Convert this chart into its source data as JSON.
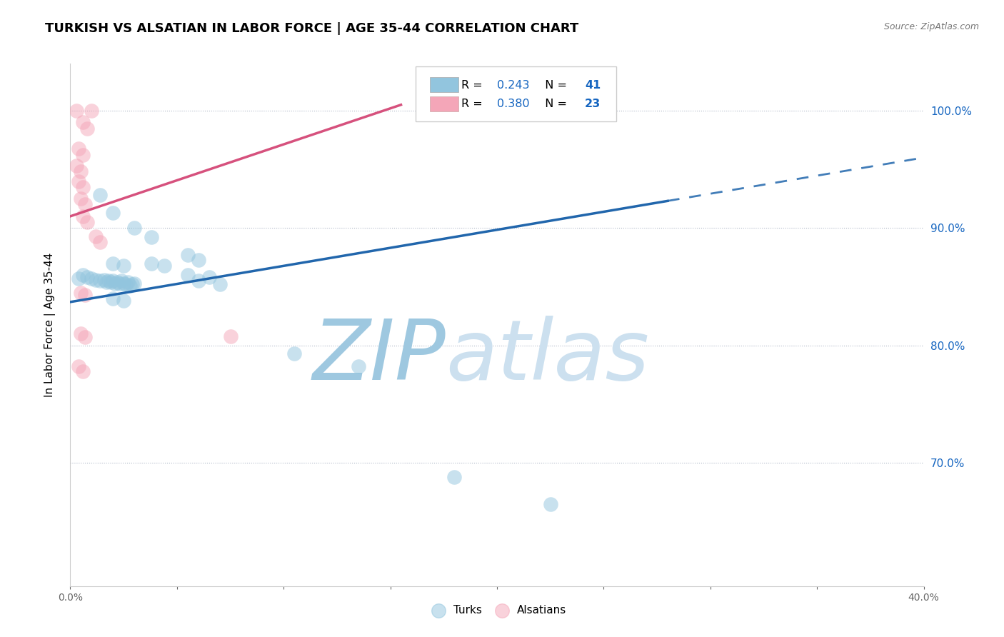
{
  "title": "TURKISH VS ALSATIAN IN LABOR FORCE | AGE 35-44 CORRELATION CHART",
  "source": "Source: ZipAtlas.com",
  "ylabel": "In Labor Force | Age 35-44",
  "xlim": [
    0.0,
    0.4
  ],
  "ylim": [
    0.595,
    1.04
  ],
  "xtick_labels": [
    "0.0%",
    "",
    "",
    "",
    "",
    "",
    "",
    "",
    "40.0%"
  ],
  "xtick_vals": [
    0.0,
    0.05,
    0.1,
    0.15,
    0.2,
    0.25,
    0.3,
    0.35,
    0.4
  ],
  "ytick_labels": [
    "70.0%",
    "80.0%",
    "90.0%",
    "100.0%"
  ],
  "ytick_vals": [
    0.7,
    0.8,
    0.9,
    1.0
  ],
  "hgrid_vals": [
    0.7,
    0.8,
    0.9,
    1.0
  ],
  "blue_R": "0.243",
  "blue_N": "41",
  "pink_R": "0.380",
  "pink_N": "23",
  "blue_color": "#92c5de",
  "pink_color": "#f4a6b8",
  "blue_line_color": "#2166ac",
  "pink_line_color": "#d6517d",
  "blue_scatter": [
    [
      0.004,
      0.857
    ],
    [
      0.006,
      0.86
    ],
    [
      0.008,
      0.858
    ],
    [
      0.01,
      0.857
    ],
    [
      0.012,
      0.856
    ],
    [
      0.014,
      0.855
    ],
    [
      0.016,
      0.856
    ],
    [
      0.017,
      0.854
    ],
    [
      0.018,
      0.855
    ],
    [
      0.019,
      0.854
    ],
    [
      0.02,
      0.855
    ],
    [
      0.021,
      0.853
    ],
    [
      0.022,
      0.854
    ],
    [
      0.023,
      0.853
    ],
    [
      0.024,
      0.855
    ],
    [
      0.025,
      0.853
    ],
    [
      0.026,
      0.852
    ],
    [
      0.027,
      0.854
    ],
    [
      0.028,
      0.851
    ],
    [
      0.029,
      0.852
    ],
    [
      0.03,
      0.853
    ],
    [
      0.014,
      0.928
    ],
    [
      0.02,
      0.913
    ],
    [
      0.03,
      0.9
    ],
    [
      0.038,
      0.892
    ],
    [
      0.055,
      0.877
    ],
    [
      0.06,
      0.873
    ],
    [
      0.038,
      0.87
    ],
    [
      0.044,
      0.868
    ],
    [
      0.02,
      0.87
    ],
    [
      0.025,
      0.868
    ],
    [
      0.055,
      0.86
    ],
    [
      0.065,
      0.858
    ],
    [
      0.06,
      0.855
    ],
    [
      0.07,
      0.852
    ],
    [
      0.02,
      0.84
    ],
    [
      0.025,
      0.838
    ],
    [
      0.105,
      0.793
    ],
    [
      0.135,
      0.782
    ],
    [
      0.18,
      0.688
    ],
    [
      0.225,
      0.665
    ]
  ],
  "pink_scatter": [
    [
      0.003,
      1.0
    ],
    [
      0.01,
      1.0
    ],
    [
      0.006,
      0.99
    ],
    [
      0.008,
      0.985
    ],
    [
      0.004,
      0.968
    ],
    [
      0.006,
      0.962
    ],
    [
      0.003,
      0.953
    ],
    [
      0.005,
      0.948
    ],
    [
      0.004,
      0.94
    ],
    [
      0.006,
      0.935
    ],
    [
      0.005,
      0.925
    ],
    [
      0.007,
      0.92
    ],
    [
      0.006,
      0.91
    ],
    [
      0.008,
      0.905
    ],
    [
      0.012,
      0.893
    ],
    [
      0.014,
      0.888
    ],
    [
      0.005,
      0.845
    ],
    [
      0.007,
      0.843
    ],
    [
      0.005,
      0.81
    ],
    [
      0.007,
      0.807
    ],
    [
      0.004,
      0.782
    ],
    [
      0.006,
      0.778
    ],
    [
      0.075,
      0.808
    ]
  ],
  "blue_trend_x": [
    0.0,
    0.4
  ],
  "blue_trend_y": [
    0.837,
    0.96
  ],
  "blue_trend_solid_end": 0.28,
  "pink_trend_x": [
    0.0,
    0.155
  ],
  "pink_trend_y": [
    0.91,
    1.005
  ],
  "watermark_zip": "ZIP",
  "watermark_atlas": "atlas",
  "watermark_color": "#cce0ef",
  "watermark_fontsize": 85,
  "title_fontsize": 13,
  "axis_label_fontsize": 11,
  "tick_fontsize": 10,
  "legend_color": "#1565c0",
  "right_ytick_color": "#1565c0"
}
